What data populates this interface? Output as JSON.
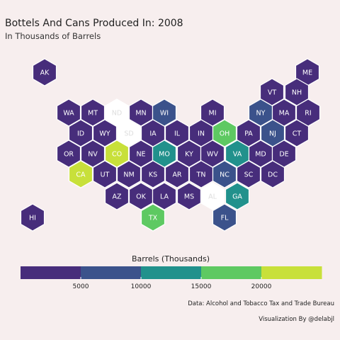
{
  "chart_data": {
    "type": "hex-tile-map",
    "title": "Bottels And Cans Produced In: 2008",
    "subtitle": "In Thousands of Barrels",
    "legend": {
      "title": "Barrels (Thousands)",
      "ticks": [
        5000,
        10000,
        15000,
        20000
      ],
      "range": [
        0,
        25000
      ],
      "position": "bottom",
      "colors": [
        "#472d7b",
        "#3b528b",
        "#21918c",
        "#5ec962",
        "#c8e03a"
      ]
    },
    "missing_color": "#ffffff",
    "states": [
      {
        "abbr": "AK",
        "value": 1200
      },
      {
        "abbr": "ME",
        "value": 900
      },
      {
        "abbr": "VT",
        "value": 800
      },
      {
        "abbr": "NH",
        "value": 1800
      },
      {
        "abbr": "WA",
        "value": 2400
      },
      {
        "abbr": "MT",
        "value": 700
      },
      {
        "abbr": "ND",
        "value": null
      },
      {
        "abbr": "MN",
        "value": 2600
      },
      {
        "abbr": "WI",
        "value": 9200
      },
      {
        "abbr": "MI",
        "value": 2100
      },
      {
        "abbr": "NY",
        "value": 8600
      },
      {
        "abbr": "MA",
        "value": 3500
      },
      {
        "abbr": "RI",
        "value": 400
      },
      {
        "abbr": "ID",
        "value": 500
      },
      {
        "abbr": "WY",
        "value": 300
      },
      {
        "abbr": "SD",
        "value": null
      },
      {
        "abbr": "IA",
        "value": 700
      },
      {
        "abbr": "IL",
        "value": 2200
      },
      {
        "abbr": "IN",
        "value": 1100
      },
      {
        "abbr": "OH",
        "value": 17000
      },
      {
        "abbr": "PA",
        "value": 4200
      },
      {
        "abbr": "NJ",
        "value": 8300
      },
      {
        "abbr": "CT",
        "value": 600
      },
      {
        "abbr": "OR",
        "value": 3800
      },
      {
        "abbr": "NV",
        "value": 300
      },
      {
        "abbr": "CO",
        "value": 21500
      },
      {
        "abbr": "NE",
        "value": 500
      },
      {
        "abbr": "MO",
        "value": 13500
      },
      {
        "abbr": "KY",
        "value": 600
      },
      {
        "abbr": "WV",
        "value": 200
      },
      {
        "abbr": "VA",
        "value": 14500
      },
      {
        "abbr": "MD",
        "value": 1500
      },
      {
        "abbr": "DE",
        "value": 800
      },
      {
        "abbr": "CA",
        "value": 24500
      },
      {
        "abbr": "UT",
        "value": 500
      },
      {
        "abbr": "NM",
        "value": 400
      },
      {
        "abbr": "KS",
        "value": 300
      },
      {
        "abbr": "AR",
        "value": 300
      },
      {
        "abbr": "TN",
        "value": 4300
      },
      {
        "abbr": "NC",
        "value": 8700
      },
      {
        "abbr": "SC",
        "value": 600
      },
      {
        "abbr": "DC",
        "value": 300
      },
      {
        "abbr": "AZ",
        "value": 1300
      },
      {
        "abbr": "OK",
        "value": 300
      },
      {
        "abbr": "LA",
        "value": 1200
      },
      {
        "abbr": "MS",
        "value": 200
      },
      {
        "abbr": "AL",
        "value": null
      },
      {
        "abbr": "GA",
        "value": 13000
      },
      {
        "abbr": "HI",
        "value": 400
      },
      {
        "abbr": "TX",
        "value": 16000
      },
      {
        "abbr": "FL",
        "value": 8900
      }
    ]
  },
  "footer": {
    "source": "Data:  Alcohol and Tobacco Tax and Trade Bureau",
    "credit": "Visualization By @delabjl"
  }
}
